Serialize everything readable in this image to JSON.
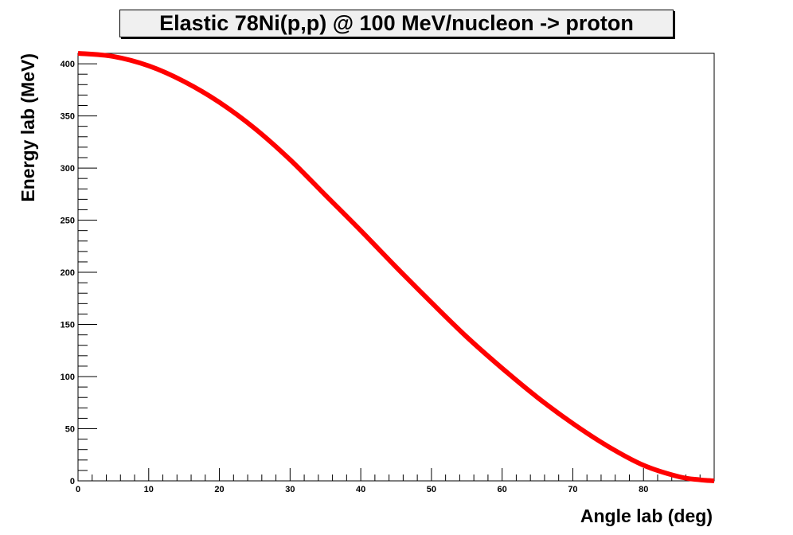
{
  "chart_data": {
    "type": "line",
    "title": "Elastic 78Ni(p,p) @ 100 MeV/nucleon -> proton",
    "xlabel": "Angle lab (deg)",
    "ylabel": "Energy lab (MeV)",
    "xlim": [
      0,
      90
    ],
    "ylim": [
      0,
      410
    ],
    "x_ticks": [
      0,
      10,
      20,
      30,
      40,
      50,
      60,
      70,
      80
    ],
    "y_ticks": [
      0,
      50,
      100,
      150,
      200,
      250,
      300,
      350,
      400
    ],
    "grid": false,
    "legend": "none",
    "series": [
      {
        "color": "#ff0000",
        "x": [
          0,
          5,
          10,
          15,
          20,
          25,
          30,
          35,
          40,
          45,
          50,
          55,
          60,
          65,
          70,
          75,
          80,
          85,
          88,
          90
        ],
        "y": [
          410,
          407,
          398,
          383,
          363,
          338,
          308,
          274,
          240,
          205,
          171,
          138,
          108,
          80,
          55,
          33,
          15,
          4,
          1,
          0
        ]
      }
    ]
  },
  "colors": {
    "curve": "#ff0000",
    "axis": "#000000",
    "title_box": "#f0f0f0"
  }
}
